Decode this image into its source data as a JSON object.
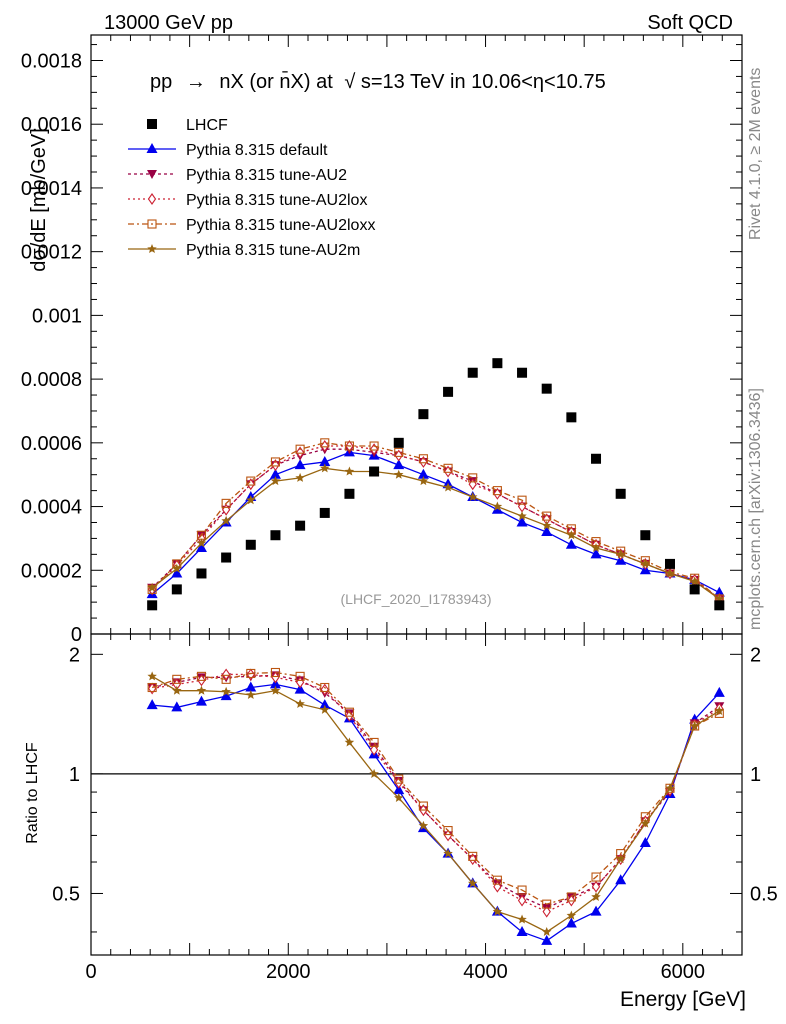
{
  "header": {
    "left": "13000 GeV pp",
    "right": "Soft QCD"
  },
  "side_labels": {
    "rivet": "Rivet 4.1.0, ≥ 2M events",
    "mcplots": "mcplots.cern.ch [arXiv:1306.3436]"
  },
  "chart_data": {
    "type": "line",
    "title": "pp → nX (or n̄X) at √s=13 TeV in 10.06<η<10.75",
    "title_parts": {
      "pp": "pp",
      "arrow": "→",
      "process": "nX (or n̄X) at",
      "sqrt": "√",
      "energy": "s=13 TeV in 10.06<η<10.75"
    },
    "watermark": "(LHCF_2020_I1783943)",
    "xlabel": "Energy [GeV]",
    "ylabel": "dσ/dE [mb/GeV]",
    "ratio_ylabel": "Ratio to LHCF",
    "xlim": [
      0,
      6600
    ],
    "ylim": [
      0,
      0.00188
    ],
    "ratio_ylim": [
      0.35,
      2.25
    ],
    "x_ticks": [
      0,
      2000,
      4000,
      6000
    ],
    "x_tick_labels": [
      "0",
      "2000",
      "4000",
      "6000"
    ],
    "y_ticks": [
      0,
      0.0002,
      0.0004,
      0.0006,
      0.0008,
      0.001,
      0.0012,
      0.0014,
      0.0016,
      0.0018
    ],
    "y_tick_labels": [
      "0",
      "0.0002",
      "0.0004",
      "0.0006",
      "0.0008",
      "0.001",
      "0.0012",
      "0.0014",
      "0.0016",
      "0.0018"
    ],
    "ratio_ticks": [
      0.5,
      1,
      2
    ],
    "ratio_tick_labels": [
      "0.5",
      "1",
      "2"
    ],
    "x": [
      620,
      870,
      1120,
      1370,
      1620,
      1870,
      2120,
      2370,
      2620,
      2870,
      3120,
      3370,
      3620,
      3870,
      4120,
      4370,
      4620,
      4870,
      5120,
      5370,
      5620,
      5870,
      6120,
      6370
    ],
    "series": [
      {
        "name": "LHCF",
        "color": "#000000",
        "marker": "square-filled",
        "dash": "none",
        "line": false,
        "values": [
          9e-05,
          0.00014,
          0.00019,
          0.00024,
          0.00028,
          0.00031,
          0.00034,
          0.00038,
          0.00044,
          0.00051,
          0.0006,
          0.00069,
          0.00076,
          0.00082,
          0.00085,
          0.00082,
          0.00077,
          0.00068,
          0.00055,
          0.00044,
          0.00031,
          0.00022,
          0.00014,
          9e-05
        ],
        "ratio": [
          1,
          1,
          1,
          1,
          1,
          1,
          1,
          1,
          1,
          1,
          1,
          1,
          1,
          1,
          1,
          1,
          1,
          1,
          1,
          1,
          1,
          1,
          1,
          1
        ]
      },
      {
        "name": "Pythia 8.315 default",
        "color": "#0000ee",
        "marker": "triangle-up-filled",
        "dash": "none",
        "line": true,
        "values": [
          0.000125,
          0.00019,
          0.00027,
          0.00035,
          0.00043,
          0.0005,
          0.00053,
          0.00054,
          0.00057,
          0.00056,
          0.00053,
          0.0005,
          0.00047,
          0.00043,
          0.00039,
          0.00035,
          0.00032,
          0.00028,
          0.00025,
          0.00023,
          0.0002,
          0.00019,
          0.00017,
          0.00013
        ],
        "ratio": [
          1.49,
          1.47,
          1.52,
          1.57,
          1.65,
          1.68,
          1.63,
          1.49,
          1.38,
          1.12,
          0.91,
          0.73,
          0.63,
          0.53,
          0.45,
          0.4,
          0.38,
          0.42,
          0.45,
          0.54,
          0.67,
          0.89,
          1.37,
          1.6
        ]
      },
      {
        "name": "Pythia 8.315 tune-AU2",
        "color": "#990044",
        "marker": "triangle-down-filled",
        "dash": "3,3",
        "line": true,
        "values": [
          0.000145,
          0.00022,
          0.00031,
          0.00039,
          0.00047,
          0.00053,
          0.00056,
          0.00058,
          0.00058,
          0.00057,
          0.00056,
          0.00054,
          0.00051,
          0.00048,
          0.00044,
          0.0004,
          0.00036,
          0.00032,
          0.00028,
          0.00025,
          0.00022,
          0.00019,
          0.00017,
          0.00011
        ],
        "ratio": [
          1.65,
          1.7,
          1.75,
          1.75,
          1.76,
          1.77,
          1.72,
          1.6,
          1.42,
          1.17,
          0.96,
          0.81,
          0.7,
          0.61,
          0.53,
          0.49,
          0.46,
          0.49,
          0.52,
          0.61,
          0.76,
          0.9,
          1.34,
          1.48
        ]
      },
      {
        "name": "Pythia 8.315 tune-AU2lox",
        "color": "#cc2233",
        "marker": "diamond-open",
        "dash": "2,3",
        "line": true,
        "values": [
          0.00014,
          0.000215,
          0.0003,
          0.00039,
          0.00047,
          0.00053,
          0.00057,
          0.00059,
          0.00059,
          0.00058,
          0.00056,
          0.00054,
          0.00051,
          0.00047,
          0.00044,
          0.0004,
          0.00036,
          0.00032,
          0.00028,
          0.00025,
          0.00022,
          0.00019,
          0.00017,
          0.00011
        ],
        "ratio": [
          1.64,
          1.68,
          1.72,
          1.78,
          1.78,
          1.75,
          1.7,
          1.63,
          1.4,
          1.15,
          0.95,
          0.81,
          0.7,
          0.61,
          0.52,
          0.48,
          0.45,
          0.48,
          0.52,
          0.61,
          0.76,
          0.91,
          1.33,
          1.46
        ]
      },
      {
        "name": "Pythia 8.315 tune-AU2loxx",
        "color": "#bb5511",
        "marker": "square-open",
        "dash": "6,3,2,3",
        "line": true,
        "values": [
          0.00014,
          0.00022,
          0.00031,
          0.00041,
          0.00048,
          0.00054,
          0.00058,
          0.0006,
          0.00059,
          0.00059,
          0.00057,
          0.00055,
          0.00052,
          0.00049,
          0.00045,
          0.00042,
          0.00037,
          0.00033,
          0.00029,
          0.00026,
          0.00023,
          0.000195,
          0.000175,
          0.00011
        ],
        "ratio": [
          1.65,
          1.73,
          1.76,
          1.73,
          1.79,
          1.8,
          1.76,
          1.65,
          1.43,
          1.2,
          0.97,
          0.83,
          0.72,
          0.62,
          0.54,
          0.51,
          0.47,
          0.49,
          0.55,
          0.63,
          0.78,
          0.92,
          1.32,
          1.42
        ]
      },
      {
        "name": "Pythia 8.315 tune-AU2m",
        "color": "#996611",
        "marker": "star-filled",
        "dash": "none",
        "line": true,
        "values": [
          0.000145,
          0.000205,
          0.000285,
          0.000355,
          0.00042,
          0.00048,
          0.00049,
          0.00052,
          0.00051,
          0.00051,
          0.0005,
          0.00048,
          0.00046,
          0.00043,
          0.0004,
          0.00037,
          0.00034,
          0.00031,
          0.00027,
          0.00025,
          0.00022,
          0.00019,
          0.000165,
          0.00011
        ],
        "ratio": [
          1.76,
          1.62,
          1.62,
          1.61,
          1.58,
          1.62,
          1.5,
          1.45,
          1.2,
          1.0,
          0.87,
          0.74,
          0.63,
          0.53,
          0.45,
          0.43,
          0.4,
          0.44,
          0.49,
          0.61,
          0.75,
          0.92,
          1.32,
          1.44
        ]
      }
    ]
  }
}
